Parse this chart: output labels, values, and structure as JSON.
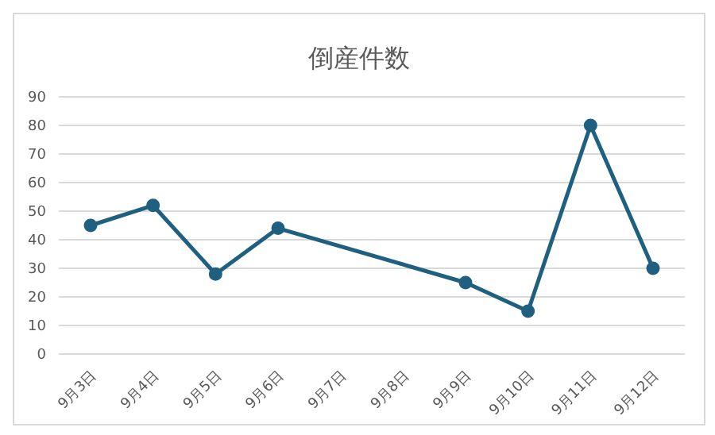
{
  "chart_data": {
    "type": "line",
    "title": "倒産件数",
    "categories": [
      "9月3日",
      "9月4日",
      "9月5日",
      "9月6日",
      "9月7日",
      "9月8日",
      "9月9日",
      "9月10日",
      "9月11日",
      "9月12日"
    ],
    "series": [
      {
        "color": "#1f5f7f",
        "values": [
          45,
          52,
          28,
          44,
          null,
          null,
          25,
          15,
          80,
          30
        ]
      }
    ],
    "ylim": [
      0,
      90
    ],
    "yticks": [
      0,
      10,
      20,
      30,
      40,
      50,
      60,
      70,
      80,
      90
    ],
    "grid": "y",
    "legend": false,
    "marker": "circle",
    "line_style": "solid"
  }
}
